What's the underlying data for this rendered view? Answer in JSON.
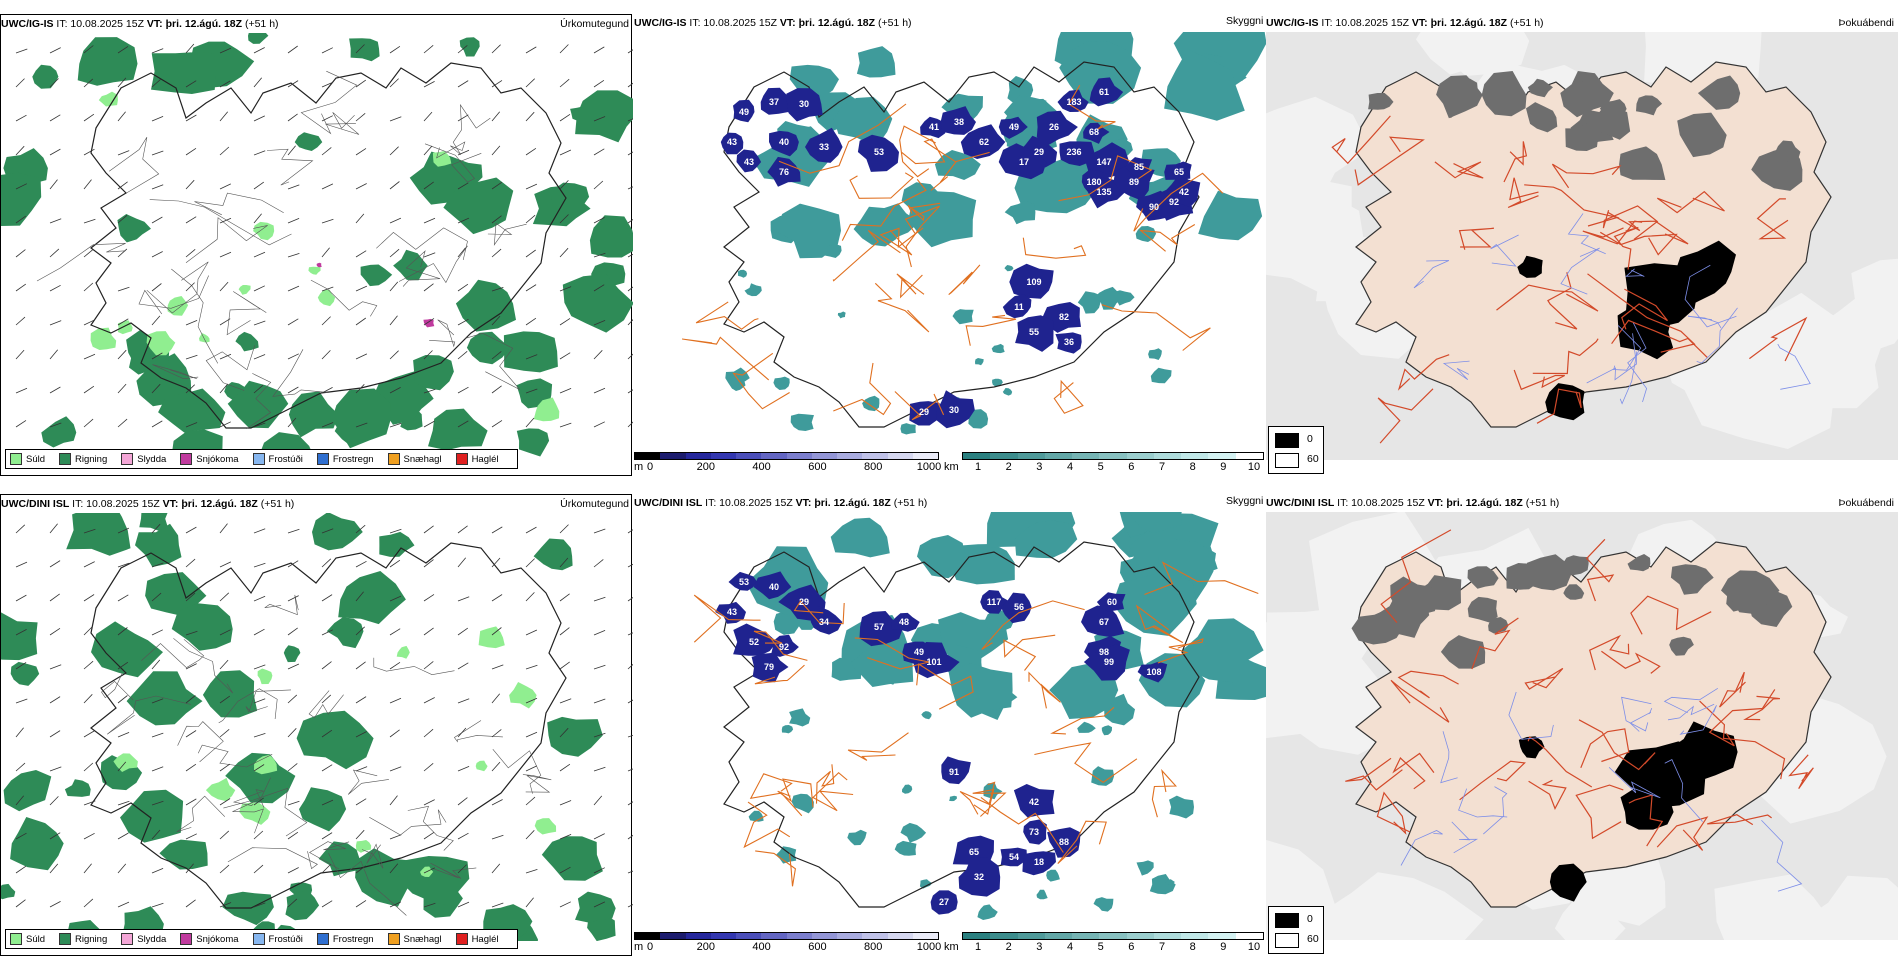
{
  "rows": [
    {
      "model": "UWC/IG-IS",
      "it_label": "IT: 10.08.2025 15Z",
      "vt_label": "VT: þri. 12.ágú. 18Z",
      "lead": "(+51 h)",
      "left_title": "Úrkomutegund",
      "mid_title": "Skyggni",
      "right_title": "Þokuábendi",
      "cloud_labels": [
        "49",
        "37",
        "30",
        "43",
        "40",
        "33",
        "43",
        "76",
        "53",
        "41",
        "38",
        "62",
        "49",
        "29",
        "17",
        "183",
        "61",
        "26",
        "68",
        "236",
        "147",
        "180",
        "135",
        "89",
        "85",
        "90",
        "92",
        "65",
        "42",
        "109",
        "11",
        "82",
        "55",
        "36",
        "29",
        "30"
      ]
    },
    {
      "model": "UWC/DINI ISL",
      "it_label": "IT: 10.08.2025 15Z",
      "vt_label": "VT: þri. 12.ágú. 18Z",
      "lead": "(+51 h)",
      "left_title": "Úrkomutegund",
      "mid_title": "Skyggni",
      "right_title": "Þokuábendi",
      "cloud_labels": [
        "53",
        "40",
        "29",
        "43",
        "34",
        "52",
        "92",
        "79",
        "57",
        "48",
        "49",
        "101",
        "117",
        "56",
        "67",
        "60",
        "98",
        "99",
        "108",
        "91",
        "42",
        "73",
        "88",
        "65",
        "54",
        "18",
        "32",
        "27"
      ]
    }
  ],
  "precip_legend": [
    {
      "label": "Súld",
      "color": "#90ee90"
    },
    {
      "label": "Rigning",
      "color": "#2e8b57"
    },
    {
      "label": "Slydda",
      "color": "#f4a6d7"
    },
    {
      "label": "Snjókoma",
      "color": "#c03a9e"
    },
    {
      "label": "Frostúði",
      "color": "#87b7f0"
    },
    {
      "label": "Frostregn",
      "color": "#2f6fd0"
    },
    {
      "label": "Snæhagl",
      "color": "#f0a020"
    },
    {
      "label": "Haglél",
      "color": "#e02020"
    }
  ],
  "ceiling_bar": {
    "unit": "m",
    "ticks": [
      "0",
      "200",
      "400",
      "600",
      "800",
      "1000"
    ],
    "colors": [
      "#000000",
      "#1c1c6e",
      "#25279c",
      "#3337b0",
      "#4b4fba",
      "#6366c3",
      "#7b7ecd",
      "#9396d6",
      "#a9acdf",
      "#c0c2e8",
      "#d6d8f0",
      "#ebecf8"
    ]
  },
  "visibility_bar": {
    "unit": "km",
    "ticks": [
      "1",
      "2",
      "3",
      "4",
      "5",
      "6",
      "7",
      "8",
      "9",
      "10"
    ],
    "colors": [
      "#2a8080",
      "#3c8d8d",
      "#4f9a9a",
      "#62a7a7",
      "#75b4b4",
      "#88c1c1",
      "#9bcece",
      "#aedbdb",
      "#c1e8e8",
      "#d4f2f2",
      "#ffffff"
    ]
  },
  "fog_legend": [
    {
      "label": "0",
      "color": "#000000"
    },
    {
      "label": "60",
      "color": "#ffffff"
    }
  ],
  "colors": {
    "rain": "#2e8b57",
    "drizzle": "#90ee90",
    "snow": "#c03a9e",
    "roads": "#e07020",
    "land_fog": "#f3e0d2",
    "rivers": "#7d8ee8",
    "cloud_blue": "#1f238f",
    "vis_teal": "#3f9b9b"
  }
}
